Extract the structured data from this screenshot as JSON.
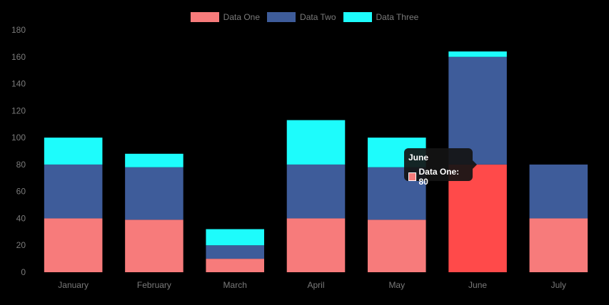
{
  "chart_data": {
    "type": "bar",
    "stacked": true,
    "categories": [
      "January",
      "February",
      "March",
      "April",
      "May",
      "June",
      "July"
    ],
    "series": [
      {
        "name": "Data One",
        "values": [
          40,
          39,
          10,
          40,
          39,
          80,
          40
        ],
        "color": "#f77b7b"
      },
      {
        "name": "Data Two",
        "values": [
          40,
          39,
          10,
          40,
          39,
          80,
          40
        ],
        "color": "#3e5c9a"
      },
      {
        "name": "Data Three",
        "values": [
          20,
          10,
          12,
          33,
          22,
          4,
          0
        ],
        "color": "#1dfcfc"
      }
    ],
    "ylim": [
      0,
      180
    ],
    "yticks": [
      0,
      20,
      40,
      60,
      80,
      100,
      120,
      140,
      160,
      180
    ],
    "grid": false,
    "legend_position": "top",
    "highlight": {
      "category_index": 5,
      "series_index": 0,
      "color": "#ff4a4a"
    }
  },
  "tooltip": {
    "title": "June",
    "label": "Data One: 80",
    "swatch_color": "#f77b7b"
  }
}
